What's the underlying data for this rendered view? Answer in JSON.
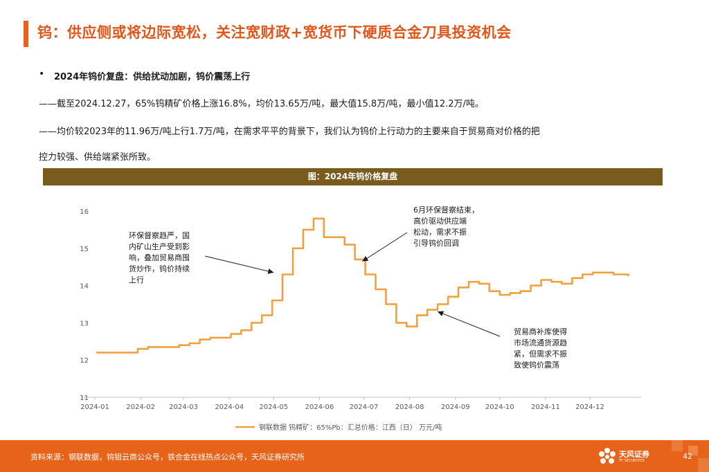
{
  "page": {
    "title": "钨：供应侧或将边际宽松，关注宽财政+宽货币下硬质合金刀具投资机会",
    "bullet": "2024年钨价复盘：供给扰动加剧，钨价震荡上行",
    "line1": "——截至2024.12.27，65%钨精矿价格上涨16.8%，均价13.65万/吨，最大值15.8万/吨，最小值12.2万/吨。",
    "line2": "——均价较2023年的11.96万/吨上行1.7万/吨，在需求平平的背景下，我们认为钨价上行动力的主要来自于贸易商对价格的把",
    "line3": "控力较强、供给端紧张所致。",
    "figure_title": "图：2024年钨价格复盘",
    "source": "资料来源：钢联数据，钨钼云商公众号，铁合金在线热点公众号，天风证券研究所",
    "brand": "天风证券",
    "brand_en": "TF SECURITIES",
    "page_number": "42",
    "accent_color": "#e8631a"
  },
  "chart_data": {
    "type": "line",
    "series": [
      {
        "name": "钢联数据 钨精矿：65%Pb：汇总价格：江西（日） 万元/吨",
        "color": "#f0a040",
        "x": [
          "2024-01-02",
          "2024-01-09",
          "2024-01-16",
          "2024-01-23",
          "2024-01-30",
          "2024-02-06",
          "2024-02-13",
          "2024-02-20",
          "2024-02-27",
          "2024-03-05",
          "2024-03-12",
          "2024-03-19",
          "2024-03-26",
          "2024-04-02",
          "2024-04-09",
          "2024-04-16",
          "2024-04-23",
          "2024-04-30",
          "2024-05-07",
          "2024-05-14",
          "2024-05-21",
          "2024-05-28",
          "2024-06-04",
          "2024-06-11",
          "2024-06-18",
          "2024-06-25",
          "2024-07-02",
          "2024-07-09",
          "2024-07-16",
          "2024-07-23",
          "2024-07-30",
          "2024-08-06",
          "2024-08-13",
          "2024-08-20",
          "2024-08-27",
          "2024-09-03",
          "2024-09-10",
          "2024-09-17",
          "2024-09-24",
          "2024-10-01",
          "2024-10-08",
          "2024-10-15",
          "2024-10-22",
          "2024-10-29",
          "2024-11-05",
          "2024-11-12",
          "2024-11-19",
          "2024-11-26",
          "2024-12-03",
          "2024-12-10",
          "2024-12-17",
          "2024-12-24",
          "2024-12-27"
        ],
        "values": [
          12.2,
          12.2,
          12.2,
          12.2,
          12.3,
          12.35,
          12.35,
          12.35,
          12.4,
          12.45,
          12.55,
          12.6,
          12.6,
          12.7,
          12.8,
          13.0,
          13.2,
          13.6,
          14.3,
          15.0,
          15.5,
          15.8,
          15.3,
          15.3,
          15.1,
          14.7,
          14.3,
          13.9,
          13.5,
          13.0,
          12.9,
          13.2,
          13.35,
          13.5,
          13.7,
          13.95,
          14.1,
          14.05,
          13.85,
          13.75,
          13.8,
          13.85,
          14.0,
          14.15,
          14.1,
          14.05,
          14.2,
          14.3,
          14.35,
          14.35,
          14.3,
          14.3,
          14.25
        ]
      }
    ],
    "x_ticks": [
      "2024-01",
      "2024-02",
      "2024-03",
      "2024-04",
      "2024-05",
      "2024-06",
      "2024-07",
      "2024-08",
      "2024-09",
      "2024-10",
      "2024-11",
      "2024-12"
    ],
    "y_ticks": [
      11,
      12,
      13,
      14,
      15,
      16
    ],
    "ylim": [
      11,
      16
    ],
    "xlim": [
      "2024-01-01",
      "2024-12-31"
    ],
    "grid": false,
    "legend_position": "bottom-center",
    "annotations": [
      {
        "text": [
          "环保督察趋严，国",
          "内矿山生产受到影",
          "响，叠加贸易商囤",
          "货炒作，钨价持续",
          "上行"
        ],
        "point": [
          "2024-05-01",
          14.35
        ]
      },
      {
        "text": [
          "6月环保督察结束，",
          "高价驱动供应端",
          "松动，需求不振",
          "引导钨价回调"
        ],
        "point": [
          "2024-06-30",
          14.65
        ]
      },
      {
        "text": [
          "贸易商补库使得",
          "市场流通货源趋",
          "紧，但需求不振",
          "致使钨价震荡"
        ],
        "point": [
          "2024-08-20",
          13.3
        ]
      }
    ]
  }
}
